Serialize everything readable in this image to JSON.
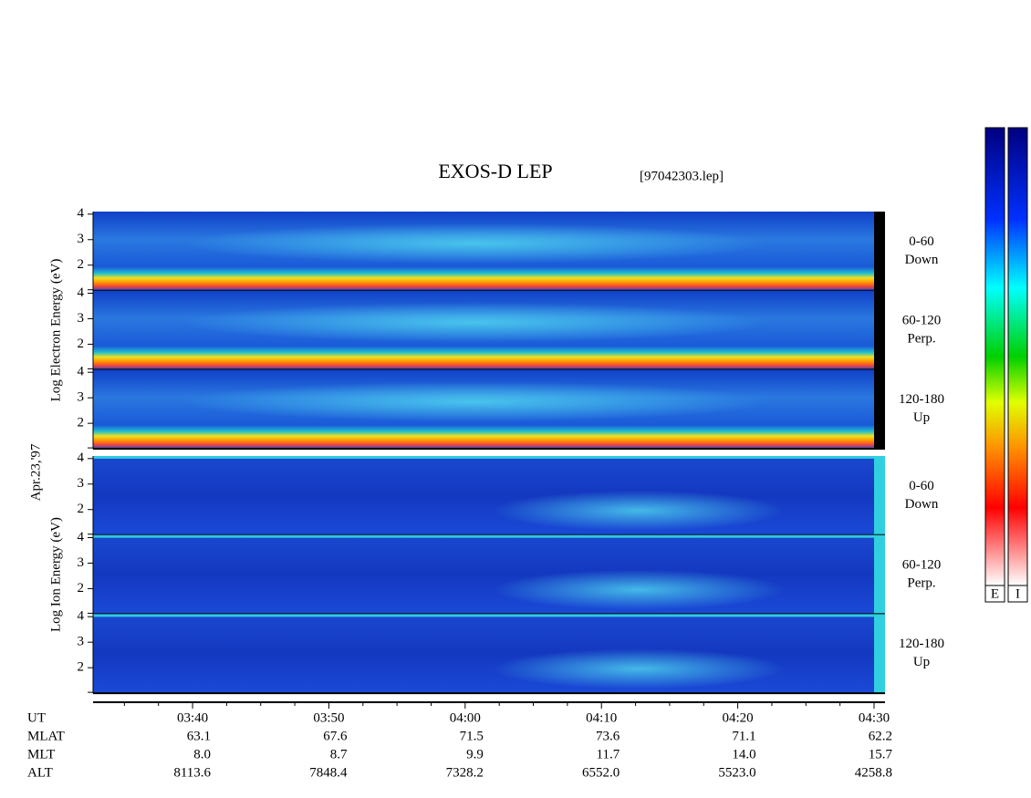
{
  "chart_data": {
    "type": "spectrogram",
    "title": "EXOS-D LEP",
    "subtitle": "[97042303.lep]",
    "date_label": "Apr.23,'97",
    "groups": [
      {
        "ylabel": "Log  Electron  Energy (eV)",
        "panels": [
          [
            "0-60",
            "Down"
          ],
          [
            "60-120",
            "Perp."
          ],
          [
            "120-180",
            "Up"
          ]
        ]
      },
      {
        "ylabel": "Log   Ion  Energy (eV)",
        "panels": [
          [
            "0-60",
            "Down"
          ],
          [
            "60-120",
            "Perp."
          ],
          [
            "120-180",
            "Up"
          ]
        ]
      }
    ],
    "ylim": [
      1,
      4.1
    ],
    "yticks": [
      2,
      3,
      4
    ],
    "xlim": [
      212.7,
      270
    ],
    "xticks": [
      {
        "value": 220,
        "label": "03:40"
      },
      {
        "value": 230,
        "label": "03:50"
      },
      {
        "value": 240,
        "label": "04:00"
      },
      {
        "value": 250,
        "label": "04:10"
      },
      {
        "value": 260,
        "label": "04:20"
      },
      {
        "value": 270,
        "label": "04:30"
      }
    ],
    "xminorticks": [
      215,
      217.5,
      222.5,
      225,
      227.5,
      232.5,
      235,
      237.5,
      242.5,
      245,
      247.5,
      252.5,
      255,
      257.5,
      262.5,
      265,
      267.5
    ],
    "xlabel": "UT",
    "rows": [
      {
        "label": "MLAT",
        "values": [
          "63.1",
          "67.6",
          "71.5",
          "73.6",
          "71.1",
          "62.2"
        ]
      },
      {
        "label": "MLT",
        "values": [
          "8.0",
          "8.7",
          "9.9",
          "11.7",
          "14.0",
          "15.7"
        ]
      },
      {
        "label": "ALT",
        "values": [
          "8113.6",
          "7848.4",
          "7328.2",
          "6552.0",
          "5523.0",
          "4258.8"
        ]
      }
    ],
    "colorbar_labels": [
      "E",
      "I"
    ]
  }
}
